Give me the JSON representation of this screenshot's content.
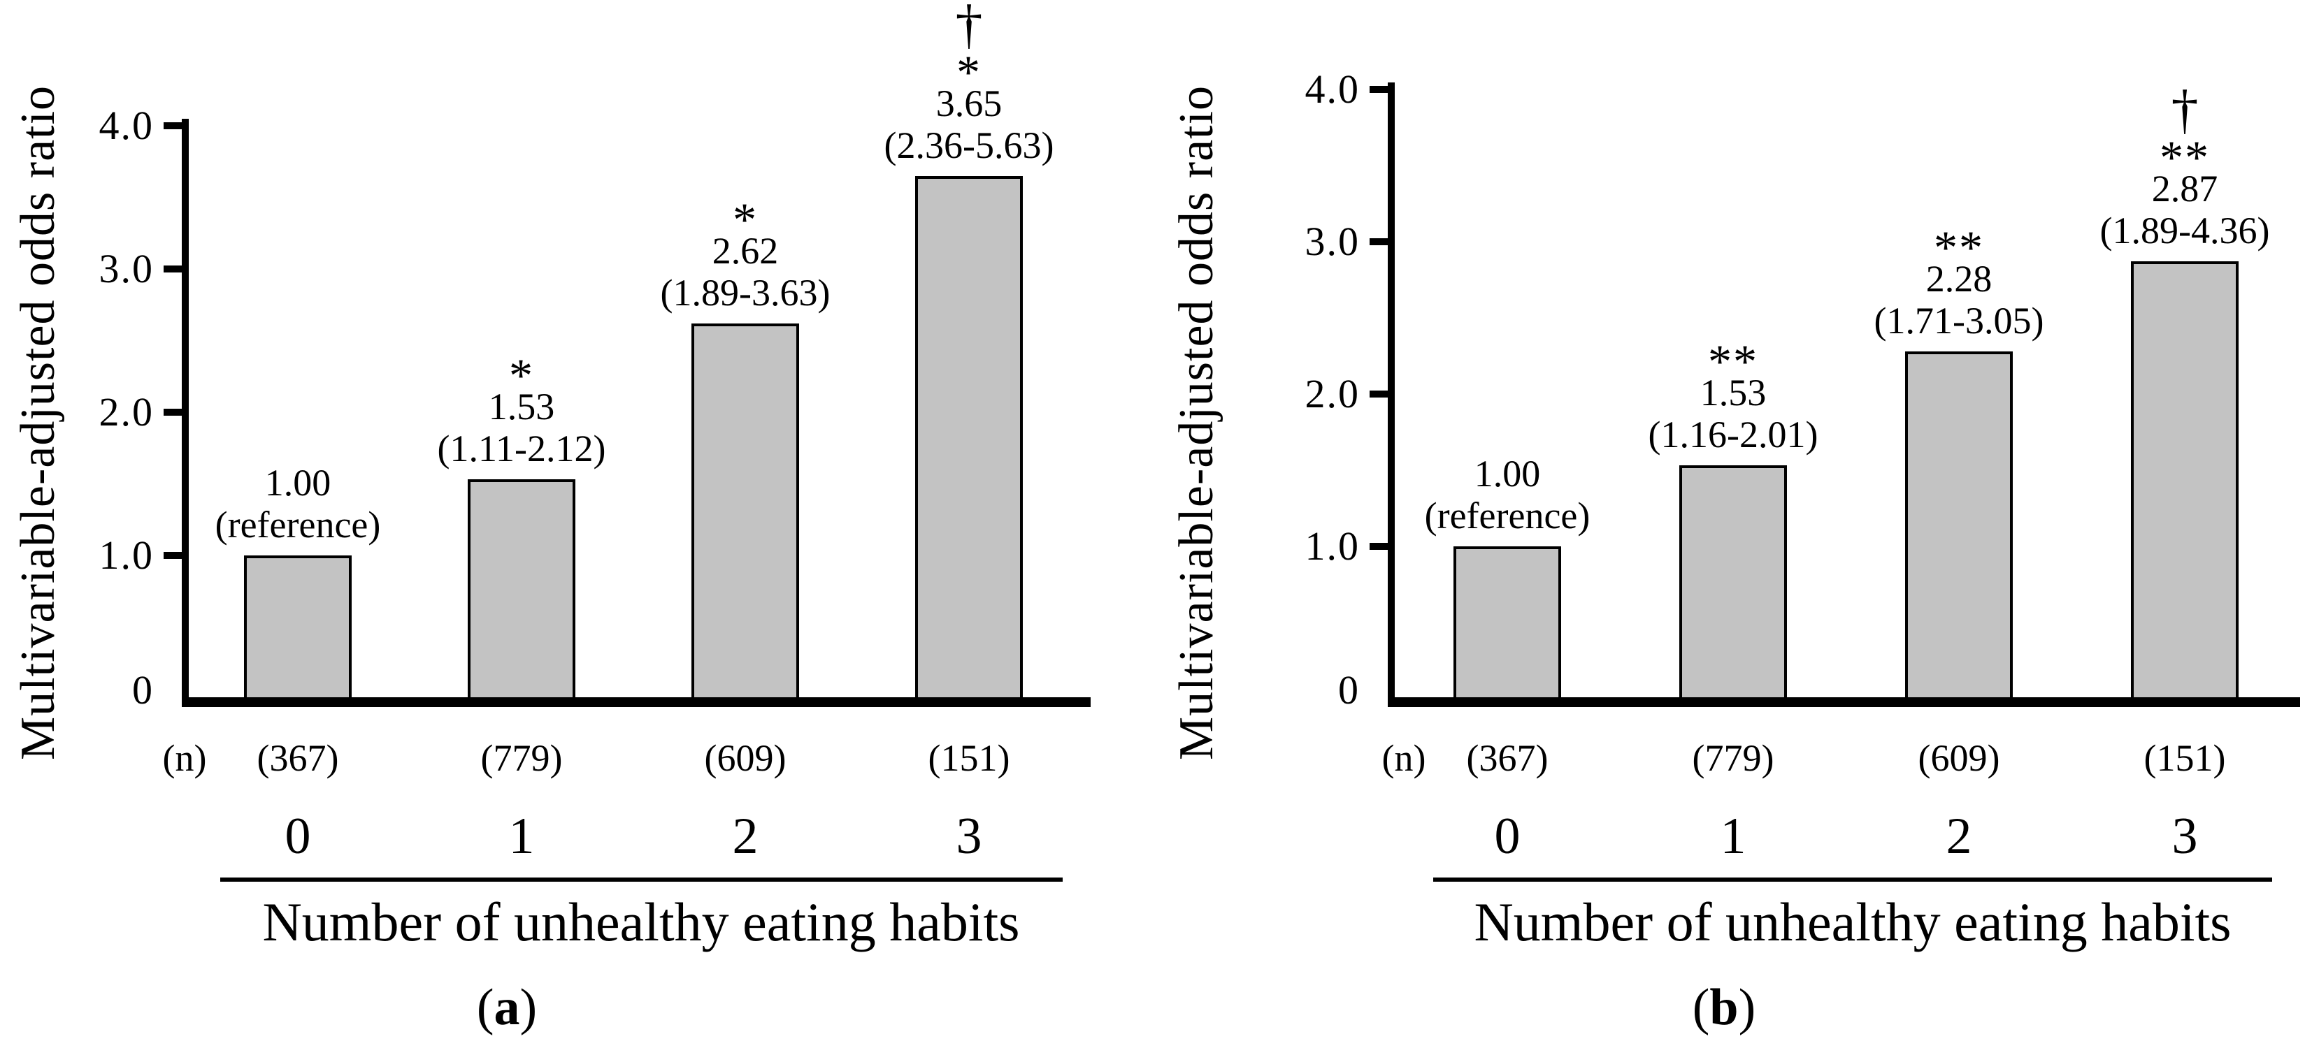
{
  "chart_data": [
    {
      "id": "a",
      "type": "bar",
      "title": "",
      "ylabel": "Multivariable-adjusted odds ratio",
      "xlabel": "Number of unhealthy eating habits",
      "ylim": [
        0,
        4.0
      ],
      "yticks": [
        {
          "value": 4,
          "label": "4.0"
        },
        {
          "value": 3,
          "label": "3.0"
        },
        {
          "value": 2,
          "label": "2.0"
        },
        {
          "value": 1,
          "label": "1.0"
        },
        {
          "value": 0,
          "label": "0"
        }
      ],
      "n_header": "(n)",
      "categories": [
        "0",
        "1",
        "2",
        "3"
      ],
      "values": [
        1.0,
        1.53,
        2.62,
        3.65
      ],
      "bars": [
        {
          "category": "0",
          "n": "(367)",
          "value": 1.0,
          "value_label": "1.00",
          "ci": "(reference)",
          "stars": "",
          "dagger": ""
        },
        {
          "category": "1",
          "n": "(779)",
          "value": 1.53,
          "value_label": "1.53",
          "ci": "(1.11-2.12)",
          "stars": "*",
          "dagger": ""
        },
        {
          "category": "2",
          "n": "(609)",
          "value": 2.62,
          "value_label": "2.62",
          "ci": "(1.89-3.63)",
          "stars": "*",
          "dagger": ""
        },
        {
          "category": "3",
          "n": "(151)",
          "value": 3.65,
          "value_label": "3.65",
          "ci": "(2.36-5.63)",
          "stars": "*",
          "dagger": "†"
        }
      ],
      "caption": {
        "open": "(",
        "letter": "a",
        "close": ")"
      },
      "colors": {
        "bar_fill": "#c3c3c3",
        "bar_border": "#000000",
        "axis": "#000000",
        "text": "#000000"
      },
      "legend": "none",
      "grid": false
    },
    {
      "id": "b",
      "type": "bar",
      "title": "",
      "ylabel": "Multivariable-adjusted odds ratio",
      "xlabel": "Number of unhealthy eating habits",
      "ylim": [
        0,
        4.0
      ],
      "yticks": [
        {
          "value": 4,
          "label": "4.0"
        },
        {
          "value": 3,
          "label": "3.0"
        },
        {
          "value": 2,
          "label": "2.0"
        },
        {
          "value": 1,
          "label": "1.0"
        },
        {
          "value": 0,
          "label": "0"
        }
      ],
      "n_header": "(n)",
      "categories": [
        "0",
        "1",
        "2",
        "3"
      ],
      "values": [
        1.0,
        1.53,
        2.28,
        2.87
      ],
      "bars": [
        {
          "category": "0",
          "n": "(367)",
          "value": 1.0,
          "value_label": "1.00",
          "ci": "(reference)",
          "stars": "",
          "dagger": ""
        },
        {
          "category": "1",
          "n": "(779)",
          "value": 1.53,
          "value_label": "1.53",
          "ci": "(1.16-2.01)",
          "stars": "**",
          "dagger": ""
        },
        {
          "category": "2",
          "n": "(609)",
          "value": 2.28,
          "value_label": "2.28",
          "ci": "(1.71-3.05)",
          "stars": "**",
          "dagger": ""
        },
        {
          "category": "3",
          "n": "(151)",
          "value": 2.87,
          "value_label": "2.87",
          "ci": "(1.89-4.36)",
          "stars": "**",
          "dagger": "†"
        }
      ],
      "caption": {
        "open": "(",
        "letter": "b",
        "close": ")"
      },
      "colors": {
        "bar_fill": "#c3c3c3",
        "bar_border": "#000000",
        "axis": "#000000",
        "text": "#000000"
      },
      "legend": "none",
      "grid": false
    }
  ]
}
